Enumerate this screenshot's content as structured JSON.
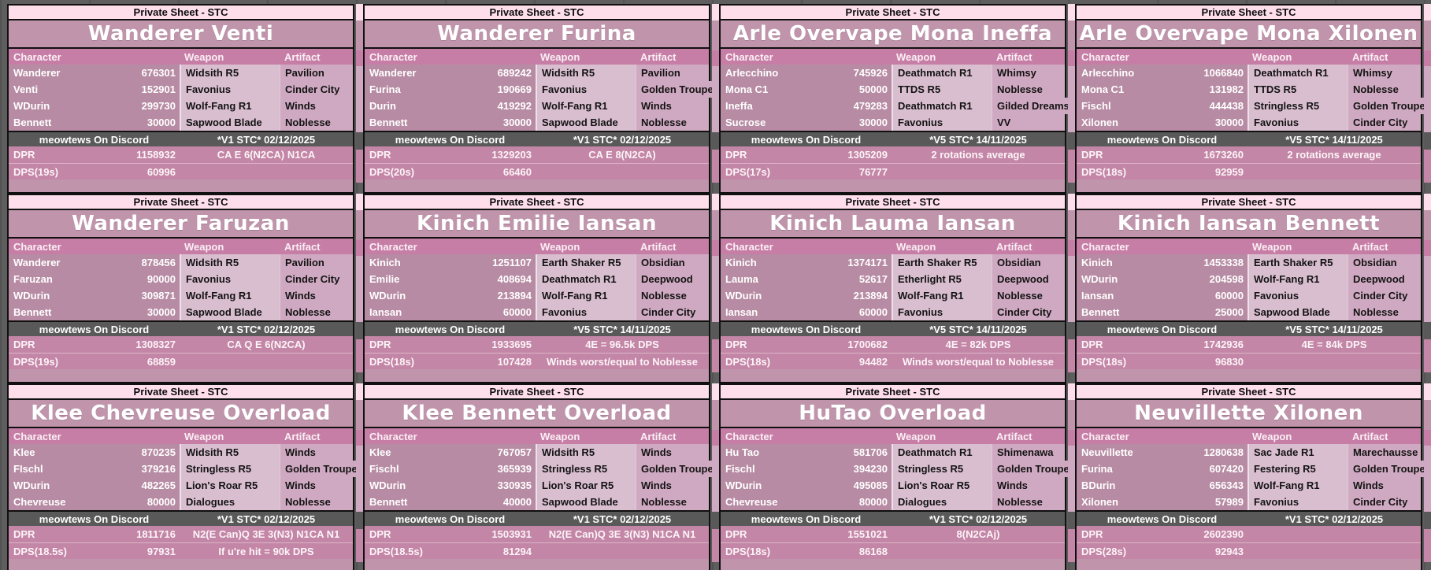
{
  "shared": {
    "header_label": "Private Sheet - STC",
    "columns": [
      "Character",
      "Weapon",
      "Artifact"
    ],
    "credit": "meowtews On Discord",
    "dpr_label": "DPR"
  },
  "colors": {
    "page_bg": "#5e5e5e",
    "private_bar": "#ffdeeb",
    "title_bar": "#c095ac",
    "table_header": "#c77ea6",
    "char_cell": "#b78ba3",
    "weapon_cell": "#d9bed0",
    "artifact_cell": "#cfa9c1",
    "footer_bar": "#595959",
    "dpr_row": "#c386a6"
  },
  "cards": [
    {
      "title": "Wanderer Venti",
      "version": "*V1 STC* 02/12/2025",
      "rows": [
        {
          "name": "Wanderer",
          "value": "676301",
          "weapon": "Widsith R5",
          "artifact": "Pavilion"
        },
        {
          "name": "Venti",
          "value": "152901",
          "weapon": "Favonius",
          "artifact": "Cinder City"
        },
        {
          "name": "WDurin",
          "value": "299730",
          "weapon": "Wolf-Fang R1",
          "artifact": "Winds"
        },
        {
          "name": "Bennett",
          "value": "30000",
          "weapon": "Sapwood Blade",
          "artifact": "Noblesse"
        }
      ],
      "dpr_value": "1158932",
      "dpr_note": "CA E 6(N2CA) N1CA",
      "dps_label": "DPS(19s)",
      "dps_value": "60996",
      "dps_note": ""
    },
    {
      "title": "Wanderer Furina",
      "version": "*V1 STC* 02/12/2025",
      "rows": [
        {
          "name": "Wanderer",
          "value": "689242",
          "weapon": "Widsith R5",
          "artifact": "Pavilion"
        },
        {
          "name": "Furina",
          "value": "190669",
          "weapon": "Favonius",
          "artifact": "Golden Troupe"
        },
        {
          "name": "Durin",
          "value": "419292",
          "weapon": "Wolf-Fang R1",
          "artifact": "Winds"
        },
        {
          "name": "Bennett",
          "value": "30000",
          "weapon": "Sapwood Blade",
          "artifact": "Noblesse"
        }
      ],
      "dpr_value": "1329203",
      "dpr_note": "CA E 8(N2CA)",
      "dps_label": "DPS(20s)",
      "dps_value": "66460",
      "dps_note": ""
    },
    {
      "title": "Arle Overvape Mona Ineffa",
      "version": "*V5 STC* 14/11/2025",
      "rows": [
        {
          "name": "Arlecchino",
          "value": "745926",
          "weapon": "Deathmatch R1",
          "artifact": "Whimsy"
        },
        {
          "name": "Mona C1",
          "value": "50000",
          "weapon": "TTDS R5",
          "artifact": "Noblesse"
        },
        {
          "name": "Ineffa",
          "value": "479283",
          "weapon": "Deathmatch R1",
          "artifact": "Gilded Dreams"
        },
        {
          "name": "Sucrose",
          "value": "30000",
          "weapon": "Favonius",
          "artifact": "VV"
        }
      ],
      "dpr_value": "1305209",
      "dpr_note": "2 rotations average",
      "dps_label": "DPS(17s)",
      "dps_value": "76777",
      "dps_note": ""
    },
    {
      "title": "Arle Overvape Mona Xilonen",
      "version": "*V5 STC* 14/11/2025",
      "rows": [
        {
          "name": "Arlecchino",
          "value": "1066840",
          "weapon": "Deathmatch R1",
          "artifact": "Whimsy"
        },
        {
          "name": "Mona C1",
          "value": "131982",
          "weapon": "TTDS R5",
          "artifact": "Noblesse"
        },
        {
          "name": "Fischl",
          "value": "444438",
          "weapon": "Stringless R5",
          "artifact": "Golden Troupe"
        },
        {
          "name": "Xilonen",
          "value": "30000",
          "weapon": "Favonius",
          "artifact": "Cinder City"
        }
      ],
      "dpr_value": "1673260",
      "dpr_note": "2 rotations average",
      "dps_label": "DPS(18s)",
      "dps_value": "92959",
      "dps_note": ""
    },
    {
      "title": "Wanderer Faruzan",
      "version": "*V1 STC* 02/12/2025",
      "rows": [
        {
          "name": "Wanderer",
          "value": "878456",
          "weapon": "Widsith R5",
          "artifact": "Pavilion"
        },
        {
          "name": "Faruzan",
          "value": "90000",
          "weapon": "Favonius",
          "artifact": "Cinder City"
        },
        {
          "name": "WDurin",
          "value": "309871",
          "weapon": "Wolf-Fang R1",
          "artifact": "Winds"
        },
        {
          "name": "Bennett",
          "value": "30000",
          "weapon": "Sapwood Blade",
          "artifact": "Noblesse"
        }
      ],
      "dpr_value": "1308327",
      "dpr_note": "CA Q E 6(N2CA)",
      "dps_label": "DPS(19s)",
      "dps_value": "68859",
      "dps_note": ""
    },
    {
      "title": "Kinich Emilie Iansan",
      "version": "*V5 STC* 14/11/2025",
      "rows": [
        {
          "name": "Kinich",
          "value": "1251107",
          "weapon": "Earth Shaker R5",
          "artifact": "Obsidian"
        },
        {
          "name": "Emilie",
          "value": "408694",
          "weapon": "Deathmatch R1",
          "artifact": "Deepwood"
        },
        {
          "name": "WDurin",
          "value": "213894",
          "weapon": "Wolf-Fang R1",
          "artifact": "Noblesse"
        },
        {
          "name": "Iansan",
          "value": "60000",
          "weapon": "Favonius",
          "artifact": "Cinder City"
        }
      ],
      "dpr_value": "1933695",
      "dpr_note": "4E = 96.5k DPS",
      "dps_label": "DPS(18s)",
      "dps_value": "107428",
      "dps_note": "Winds worst/equal to Noblesse"
    },
    {
      "title": "Kinich Lauma Iansan",
      "version": "*V5 STC* 14/11/2025",
      "rows": [
        {
          "name": "Kinich",
          "value": "1374171",
          "weapon": "Earth Shaker R5",
          "artifact": "Obsidian"
        },
        {
          "name": "Lauma",
          "value": "52617",
          "weapon": "Etherlight R5",
          "artifact": "Deepwood"
        },
        {
          "name": "WDurin",
          "value": "213894",
          "weapon": "Wolf-Fang R1",
          "artifact": "Noblesse"
        },
        {
          "name": "Iansan",
          "value": "60000",
          "weapon": "Favonius",
          "artifact": "Cinder City"
        }
      ],
      "dpr_value": "1700682",
      "dpr_note": "4E = 82k DPS",
      "dps_label": "DPS(18s)",
      "dps_value": "94482",
      "dps_note": "Winds worst/equal to Noblesse"
    },
    {
      "title": "Kinich Iansan Bennett",
      "version": "*V5 STC* 14/11/2025",
      "rows": [
        {
          "name": "Kinich",
          "value": "1453338",
          "weapon": "Earth Shaker R5",
          "artifact": "Obsidian"
        },
        {
          "name": "WDurin",
          "value": "204598",
          "weapon": "Wolf-Fang R1",
          "artifact": "Deepwood"
        },
        {
          "name": "Iansan",
          "value": "60000",
          "weapon": "Favonius",
          "artifact": "Cinder City"
        },
        {
          "name": "Bennett",
          "value": "25000",
          "weapon": "Sapwood Blade",
          "artifact": "Noblesse"
        }
      ],
      "dpr_value": "1742936",
      "dpr_note": "4E = 84k DPS",
      "dps_label": "DPS(18s)",
      "dps_value": "96830",
      "dps_note": ""
    },
    {
      "title": "Klee Chevreuse Overload",
      "version": "*V1 STC* 02/12/2025",
      "rows": [
        {
          "name": "Klee",
          "value": "870235",
          "weapon": "Widsith R5",
          "artifact": "Winds"
        },
        {
          "name": "FIschl",
          "value": "379216",
          "weapon": "Stringless R5",
          "artifact": "Golden Troupe"
        },
        {
          "name": "WDurin",
          "value": "482265",
          "weapon": "Lion's Roar R5",
          "artifact": "Winds"
        },
        {
          "name": "Chevreuse",
          "value": "80000",
          "weapon": "Dialogues",
          "artifact": "Noblesse"
        }
      ],
      "dpr_value": "1811716",
      "dpr_note": "N2(E Can)Q 3E 3(N3) N1CA N1",
      "dps_label": "DPS(18.5s)",
      "dps_value": "97931",
      "dps_note": "If u're hit = 90k DPS"
    },
    {
      "title": "Klee Bennett Overload",
      "version": "*V1 STC* 02/12/2025",
      "rows": [
        {
          "name": "Klee",
          "value": "767057",
          "weapon": "Widsith R5",
          "artifact": "Winds"
        },
        {
          "name": "Fischl",
          "value": "365939",
          "weapon": "Stringless R5",
          "artifact": "Golden Troupe"
        },
        {
          "name": "WDurin",
          "value": "330935",
          "weapon": "Lion's Roar R5",
          "artifact": "Winds"
        },
        {
          "name": "Bennett",
          "value": "40000",
          "weapon": "Sapwood Blade",
          "artifact": "Noblesse"
        }
      ],
      "dpr_value": "1503931",
      "dpr_note": "N2(E Can)Q 3E 3(N3) N1CA N1",
      "dps_label": "DPS(18.5s)",
      "dps_value": "81294",
      "dps_note": ""
    },
    {
      "title": "HuTao Overload",
      "version": "*V1 STC* 02/12/2025",
      "rows": [
        {
          "name": "Hu Tao",
          "value": "581706",
          "weapon": "Deathmatch R1",
          "artifact": "Shimenawa"
        },
        {
          "name": "Fischl",
          "value": "394230",
          "weapon": "Stringless R5",
          "artifact": "Golden Troupe"
        },
        {
          "name": "WDurin",
          "value": "495085",
          "weapon": "Lion's Roar R5",
          "artifact": "Winds"
        },
        {
          "name": "Chevreuse",
          "value": "80000",
          "weapon": "Dialogues",
          "artifact": "Noblesse"
        }
      ],
      "dpr_value": "1551021",
      "dpr_note": "8(N2CAj)",
      "dps_label": "DPS(18s)",
      "dps_value": "86168",
      "dps_note": ""
    },
    {
      "title": "Neuvillette Xilonen",
      "version": "*V1 STC* 02/12/2025",
      "rows": [
        {
          "name": "Neuvillette",
          "value": "1280638",
          "weapon": "Sac Jade R1",
          "artifact": "Marechausse"
        },
        {
          "name": "Furina",
          "value": "607420",
          "weapon": "Festering R5",
          "artifact": "Golden Troupe"
        },
        {
          "name": "BDurin",
          "value": "656343",
          "weapon": "Wolf-Fang R1",
          "artifact": "Winds"
        },
        {
          "name": "Xilonen",
          "value": "57989",
          "weapon": "Favonius",
          "artifact": "Cinder City"
        }
      ],
      "dpr_value": "2602390",
      "dpr_note": "",
      "dps_label": "DPS(28s)",
      "dps_value": "92943",
      "dps_note": ""
    }
  ]
}
